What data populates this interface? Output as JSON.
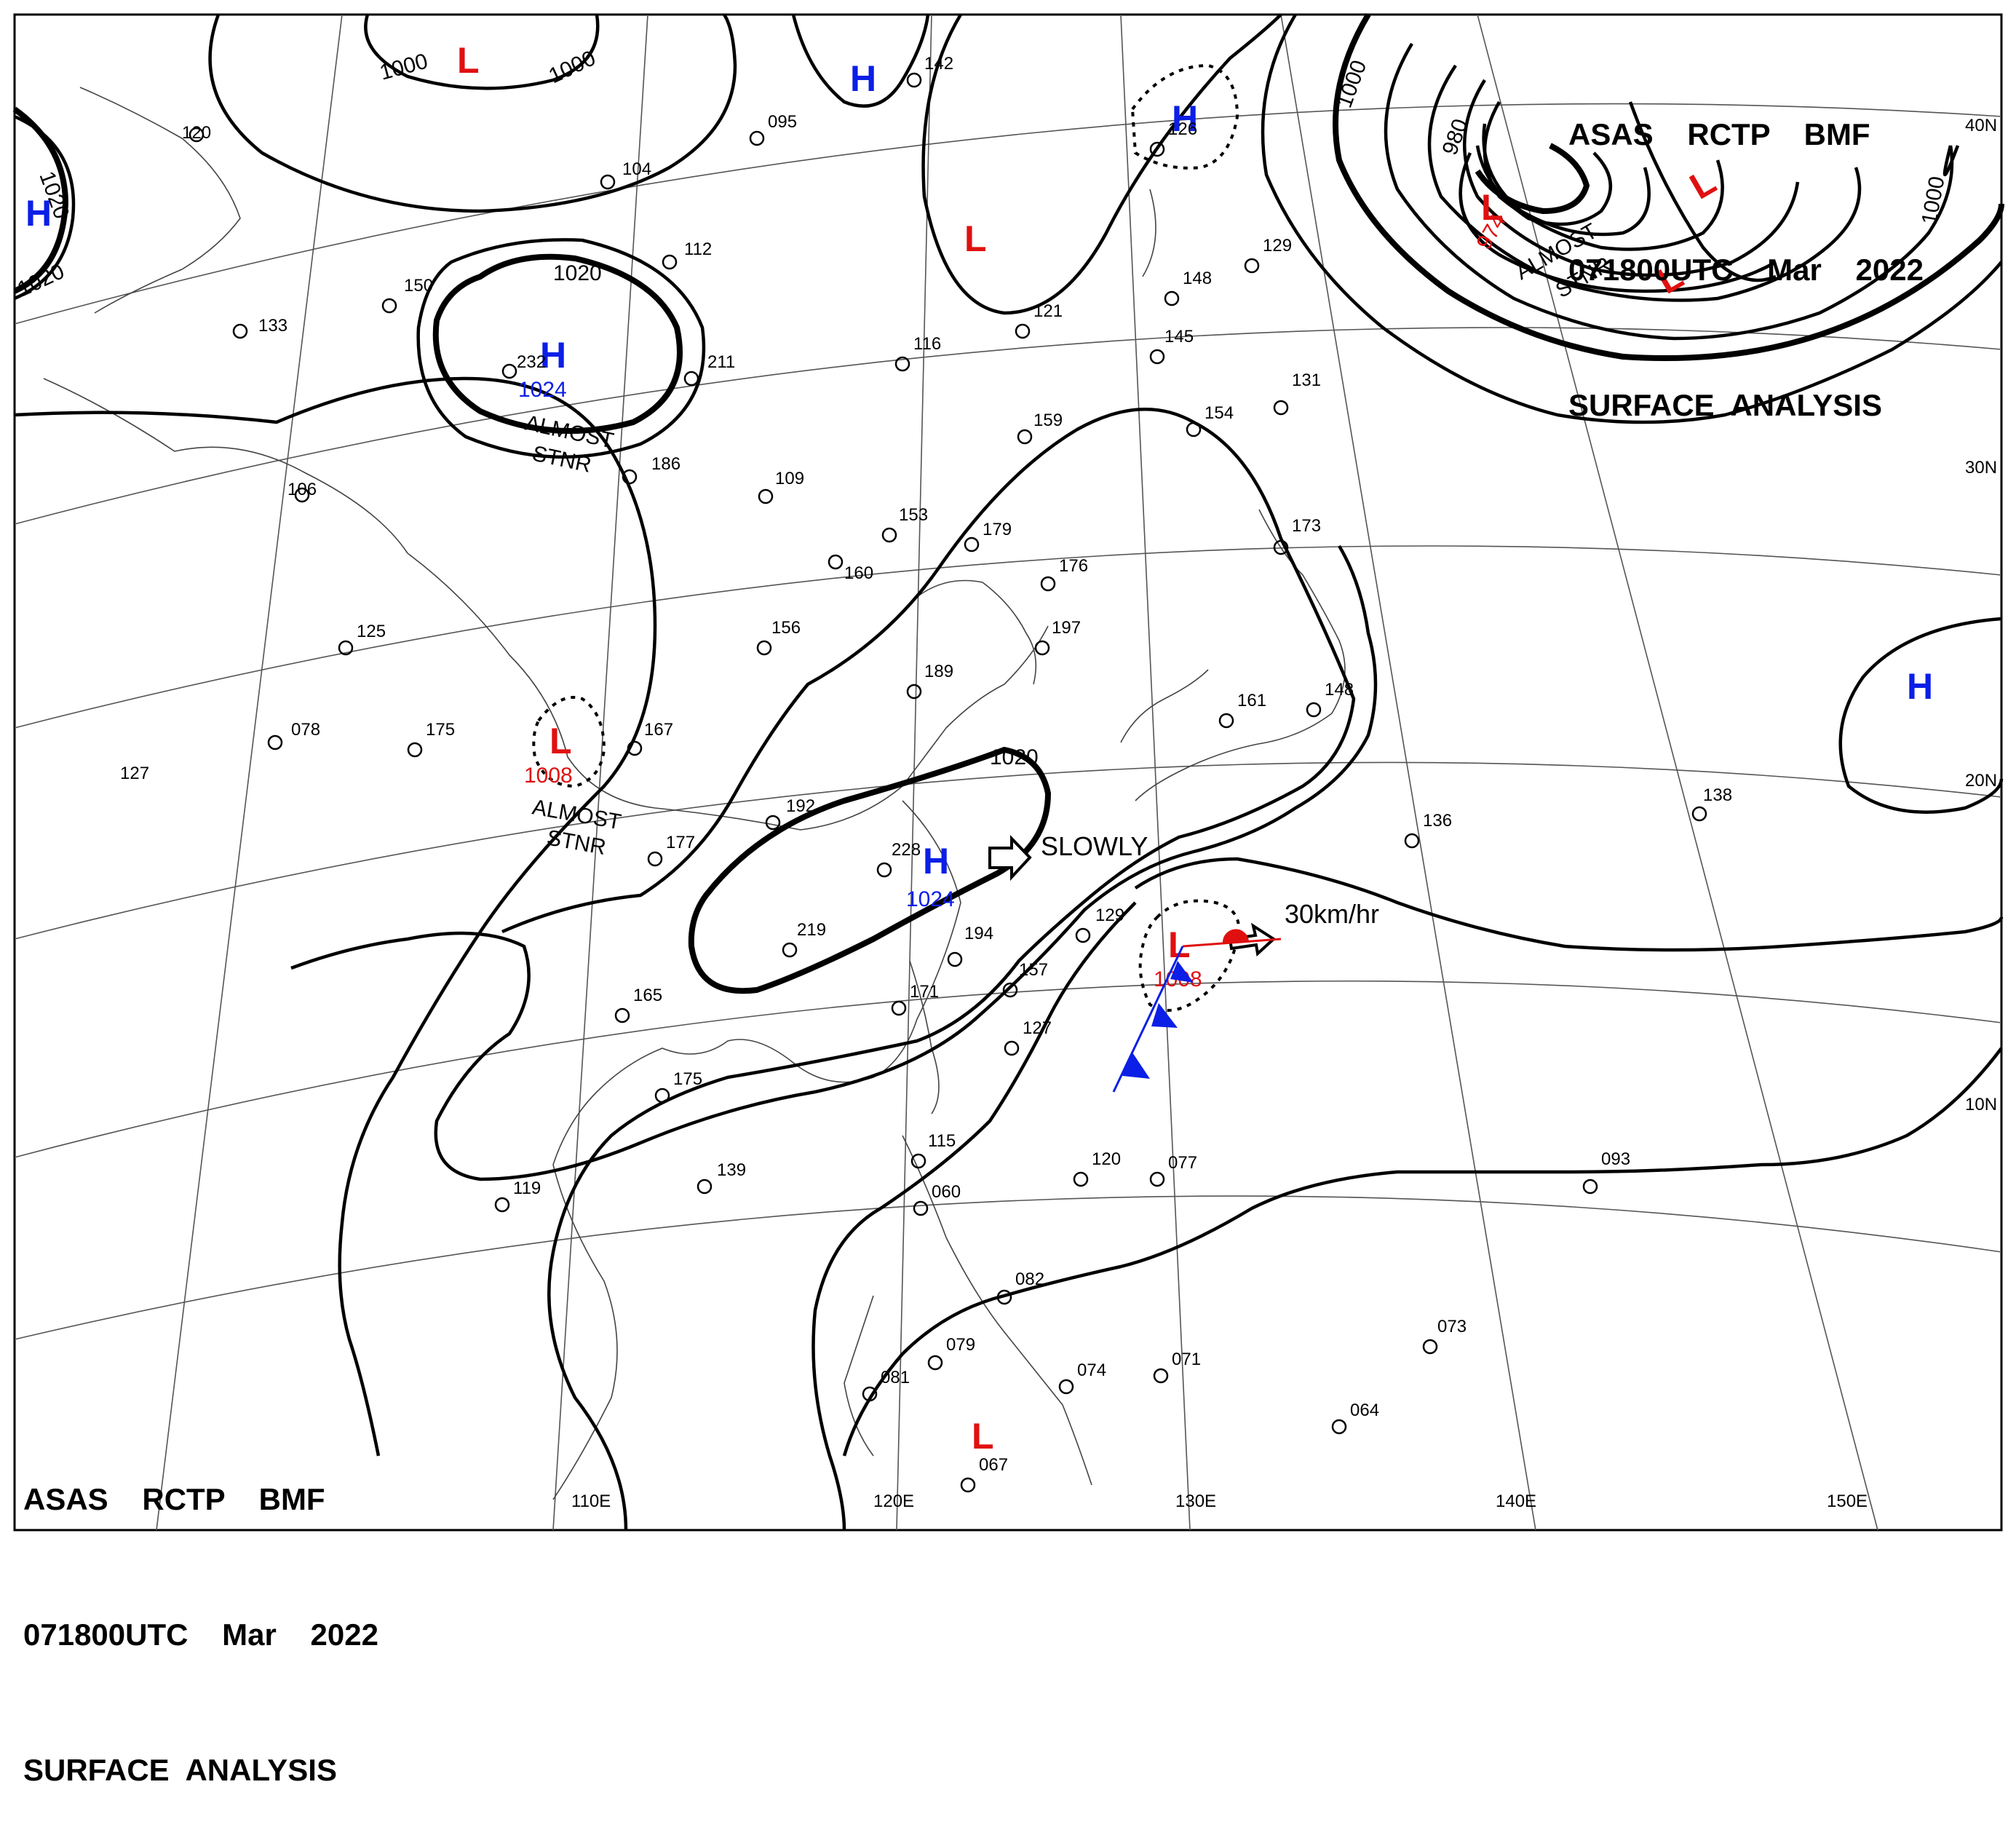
{
  "header_top": {
    "line1": "ASAS    RCTP    BMF",
    "line2": "071800UTC    Mar    2022",
    "line3": "SURFACE  ANALYSIS"
  },
  "header_bottom": {
    "line1": "ASAS    RCTP    BMF",
    "line2": "071800UTC    Mar    2022",
    "line3": "SURFACE  ANALYSIS"
  },
  "longitude_labels": [
    "110E",
    "120E",
    "130E",
    "140E",
    "150E"
  ],
  "latitude_labels": [
    "40N",
    "30N",
    "20N",
    "10N"
  ],
  "isobar_labels": [
    "1000",
    "1000",
    "1020",
    "1020",
    "1020",
    "1000",
    "980",
    "1000",
    "1020"
  ],
  "pressure_systems": [
    {
      "type": "H",
      "value": "",
      "note": ""
    },
    {
      "type": "L",
      "value": "",
      "note": ""
    },
    {
      "type": "H",
      "value": "",
      "note": ""
    },
    {
      "type": "L",
      "value": "",
      "note": ""
    },
    {
      "type": "H",
      "value": "",
      "note": ""
    },
    {
      "type": "H",
      "value": "1024",
      "note": "ALMOST STNR"
    },
    {
      "type": "L",
      "value": "974",
      "note": "ALMOST STNR"
    },
    {
      "type": "L",
      "value": "",
      "note": ""
    },
    {
      "type": "L",
      "value": "",
      "note": ""
    },
    {
      "type": "L",
      "value": "1008",
      "note": "ALMOST STNR"
    },
    {
      "type": "H",
      "value": "1024",
      "note": ""
    },
    {
      "type": "L",
      "value": "1008",
      "note": ""
    },
    {
      "type": "H",
      "value": "",
      "note": ""
    },
    {
      "type": "L",
      "value": "",
      "note": ""
    }
  ],
  "movement_labels": [
    "SLOWLY",
    "30km/hr"
  ],
  "station_values": [
    "120",
    "142",
    "104",
    "112",
    "133",
    "232",
    "211",
    "186",
    "106",
    "109",
    "159",
    "154",
    "153",
    "179",
    "160",
    "176",
    "197",
    "189",
    "156",
    "125",
    "078",
    "127",
    "175",
    "167",
    "192",
    "177",
    "228",
    "219",
    "194",
    "171",
    "157",
    "127",
    "129",
    "165",
    "175",
    "119",
    "139",
    "115",
    "060",
    "082",
    "081",
    "079",
    "074",
    "071",
    "067",
    "120",
    "077",
    "093",
    "073",
    "064",
    "136",
    "138",
    "148",
    "161",
    "173",
    "131",
    "148",
    "145",
    "121",
    "116",
    "150",
    "095",
    "126",
    "129"
  ],
  "colors": {
    "high": "#0b1fe6",
    "low": "#e01010",
    "isobar": "#000000",
    "front_warm": "#e01010",
    "front_cold": "#0b1fe6"
  }
}
